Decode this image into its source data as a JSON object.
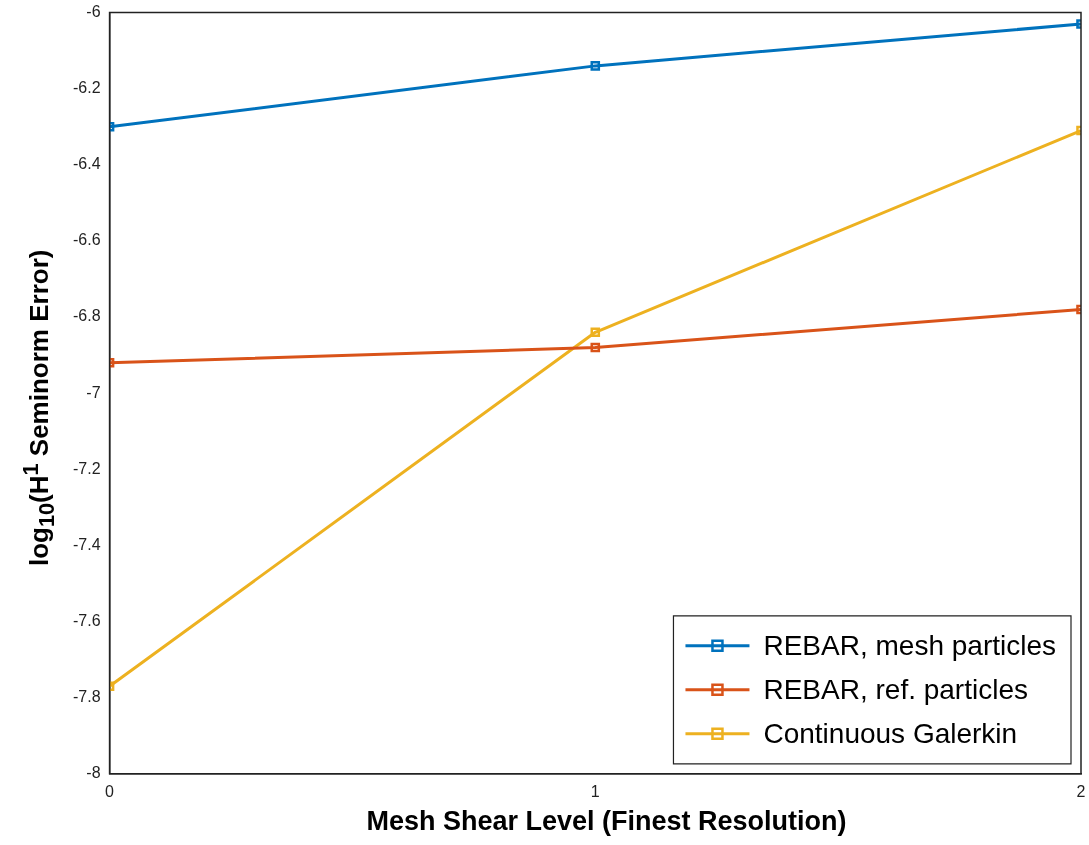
{
  "chart_data": {
    "type": "line",
    "xlabel": "Mesh Shear Level (Finest Resolution)",
    "ylabel": "log$_{10}$(H$^{1}$ Seminorm Error)",
    "x": [
      0,
      1,
      2
    ],
    "xlim": [
      0,
      2
    ],
    "xticks": [
      0,
      1,
      2
    ],
    "ylim": [
      -8,
      -6
    ],
    "yticks": [
      -8,
      -7.8,
      -7.6,
      -7.4,
      -7.2,
      -7,
      -6.8,
      -6.6,
      -6.4,
      -6.2,
      -6
    ],
    "series": [
      {
        "name": "REBAR, mesh particles",
        "color": "#0072bd",
        "values": [
          -6.3,
          -6.14,
          -6.03
        ]
      },
      {
        "name": "REBAR, ref. particles",
        "color": "#d95319",
        "values": [
          -6.92,
          -6.88,
          -6.78
        ]
      },
      {
        "name": "Continuous Galerkin",
        "color": "#edb120",
        "values": [
          -7.77,
          -6.84,
          -6.31
        ]
      }
    ],
    "marker": "square",
    "line_style": "solid",
    "grid": false,
    "legend": "bottom right"
  }
}
